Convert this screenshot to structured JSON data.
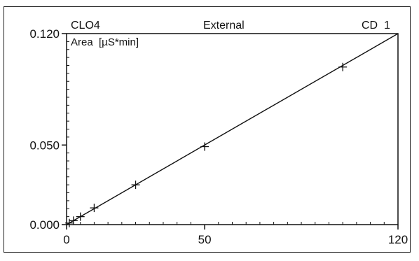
{
  "chart_data": {
    "type": "scatter",
    "header": {
      "left": "CLO4",
      "center": "External",
      "right": "CD  1"
    },
    "ylabel": "Area  [µS*min]",
    "xlabel": "",
    "xlim": [
      0,
      120
    ],
    "ylim": [
      0.0,
      0.12
    ],
    "x_ticks": [
      0,
      50,
      120
    ],
    "x_tick_labels": [
      "0",
      "50",
      "120"
    ],
    "y_ticks": [
      0.0,
      0.05,
      0.12
    ],
    "y_tick_labels": [
      "0.000",
      "0.050",
      "0.120"
    ],
    "points": [
      {
        "x": 1,
        "y": 0.001
      },
      {
        "x": 2.5,
        "y": 0.0025
      },
      {
        "x": 5,
        "y": 0.005
      },
      {
        "x": 10,
        "y": 0.0105
      },
      {
        "x": 25,
        "y": 0.025
      },
      {
        "x": 50,
        "y": 0.049
      },
      {
        "x": 100,
        "y": 0.099
      }
    ],
    "fit_line": {
      "x": [
        0,
        120
      ],
      "y": [
        0.0,
        0.12
      ]
    },
    "grid": false,
    "legend": "none"
  },
  "colors": {
    "line": "#111111",
    "marker": "#111111",
    "axis": "#111111"
  }
}
